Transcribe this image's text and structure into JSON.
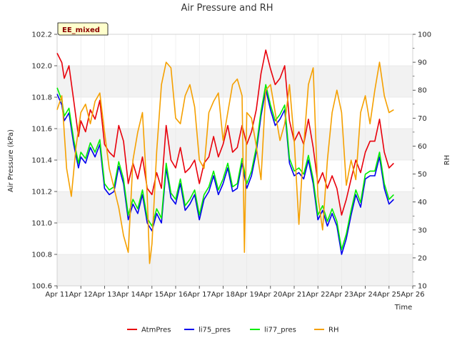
{
  "chart_data": {
    "type": "line",
    "title": "Air Pressure and RH",
    "badge": "EE_mixed",
    "xlabel": "Time",
    "ylabel": "Air Pressure (kPa)",
    "y2label": "RH",
    "xlim": [
      11,
      26
    ],
    "ylim": [
      100.6,
      102.2
    ],
    "y2lim": [
      10,
      100
    ],
    "x_ticks": [
      11,
      12,
      13,
      14,
      15,
      16,
      17,
      18,
      19,
      20,
      21,
      22,
      23,
      24,
      25,
      26
    ],
    "x_tick_labels": [
      "Apr 11",
      "Apr 12",
      "Apr 13",
      "Apr 14",
      "Apr 15",
      "Apr 16",
      "Apr 17",
      "Apr 18",
      "Apr 19",
      "Apr 20",
      "Apr 21",
      "Apr 22",
      "Apr 23",
      "Apr 24",
      "Apr 25",
      "Apr 26"
    ],
    "y_ticks": [
      100.6,
      100.8,
      101.0,
      101.2,
      101.4,
      101.6,
      101.8,
      102.0,
      102.2
    ],
    "y_tick_labels": [
      "100.6",
      "100.8",
      "101.0",
      "101.2",
      "101.4",
      "101.6",
      "101.8",
      "102.0",
      "102.2"
    ],
    "y2_ticks": [
      10,
      20,
      30,
      40,
      50,
      60,
      70,
      80,
      90,
      100
    ],
    "y2_tick_labels": [
      "10",
      "20",
      "30",
      "40",
      "50",
      "60",
      "70",
      "80",
      "90",
      "100"
    ],
    "grid": true,
    "background_bands": true,
    "legend_position": "bottom-center",
    "series": [
      {
        "name": "AtmPres",
        "axis": "left",
        "color": "#e8000b",
        "x": [
          11.0,
          11.2,
          11.3,
          11.5,
          11.7,
          11.9,
          12.0,
          12.2,
          12.4,
          12.6,
          12.8,
          13.0,
          13.2,
          13.4,
          13.6,
          13.8,
          14.0,
          14.2,
          14.4,
          14.6,
          14.8,
          15.0,
          15.2,
          15.4,
          15.6,
          15.8,
          16.0,
          16.2,
          16.4,
          16.6,
          16.8,
          17.0,
          17.2,
          17.4,
          17.6,
          17.8,
          18.0,
          18.2,
          18.4,
          18.6,
          18.8,
          19.0,
          19.2,
          19.4,
          19.6,
          19.8,
          20.0,
          20.2,
          20.4,
          20.6,
          20.8,
          21.0,
          21.2,
          21.4,
          21.6,
          21.8,
          22.0,
          22.2,
          22.4,
          22.6,
          22.8,
          23.0,
          23.2,
          23.4,
          23.6,
          23.8,
          24.0,
          24.2,
          24.4,
          24.6,
          24.8,
          25.0,
          25.2
        ],
        "values": [
          102.08,
          102.02,
          101.92,
          102.0,
          101.78,
          101.55,
          101.65,
          101.58,
          101.72,
          101.66,
          101.78,
          101.5,
          101.45,
          101.42,
          101.62,
          101.52,
          101.25,
          101.38,
          101.28,
          101.42,
          101.22,
          101.18,
          101.32,
          101.22,
          101.62,
          101.4,
          101.35,
          101.48,
          101.32,
          101.35,
          101.4,
          101.25,
          101.38,
          101.42,
          101.55,
          101.42,
          101.5,
          101.62,
          101.45,
          101.48,
          101.62,
          101.5,
          101.58,
          101.72,
          101.95,
          102.1,
          101.98,
          101.88,
          101.92,
          102.0,
          101.65,
          101.52,
          101.58,
          101.5,
          101.66,
          101.48,
          101.25,
          101.32,
          101.22,
          101.3,
          101.22,
          101.05,
          101.15,
          101.28,
          101.4,
          101.32,
          101.45,
          101.52,
          101.52,
          101.66,
          101.45,
          101.35,
          101.38
        ]
      },
      {
        "name": "li75_pres",
        "axis": "left",
        "color": "#0000ee",
        "x": [
          11.0,
          11.2,
          11.3,
          11.5,
          11.7,
          11.9,
          12.0,
          12.2,
          12.4,
          12.6,
          12.8,
          13.0,
          13.2,
          13.4,
          13.6,
          13.8,
          14.0,
          14.2,
          14.4,
          14.6,
          14.8,
          15.0,
          15.2,
          15.4,
          15.6,
          15.8,
          16.0,
          16.2,
          16.4,
          16.6,
          16.8,
          17.0,
          17.2,
          17.4,
          17.6,
          17.8,
          18.0,
          18.2,
          18.4,
          18.6,
          18.8,
          19.0,
          19.2,
          19.4,
          19.6,
          19.8,
          20.0,
          20.2,
          20.4,
          20.6,
          20.8,
          21.0,
          21.2,
          21.4,
          21.6,
          21.8,
          22.0,
          22.2,
          22.4,
          22.6,
          22.8,
          23.0,
          23.2,
          23.4,
          23.6,
          23.8,
          24.0,
          24.2,
          24.4,
          24.6,
          24.8,
          25.0,
          25.2
        ],
        "values": [
          101.82,
          101.75,
          101.65,
          101.7,
          101.5,
          101.35,
          101.42,
          101.38,
          101.48,
          101.42,
          101.5,
          101.22,
          101.18,
          101.2,
          101.36,
          101.25,
          101.02,
          101.12,
          101.06,
          101.18,
          101.0,
          100.95,
          101.06,
          101.0,
          101.35,
          101.16,
          101.12,
          101.25,
          101.08,
          101.12,
          101.18,
          101.02,
          101.15,
          101.2,
          101.3,
          101.18,
          101.25,
          101.35,
          101.2,
          101.22,
          101.38,
          101.22,
          101.3,
          101.45,
          101.68,
          101.85,
          101.72,
          101.62,
          101.66,
          101.72,
          101.38,
          101.3,
          101.32,
          101.28,
          101.4,
          101.25,
          101.02,
          101.08,
          100.98,
          101.06,
          100.98,
          100.8,
          100.9,
          101.05,
          101.18,
          101.1,
          101.28,
          101.3,
          101.3,
          101.42,
          101.22,
          101.12,
          101.15
        ]
      },
      {
        "name": "li77_pres",
        "axis": "left",
        "color": "#00ee00",
        "x": [
          11.0,
          11.2,
          11.3,
          11.5,
          11.7,
          11.9,
          12.0,
          12.2,
          12.4,
          12.6,
          12.8,
          13.0,
          13.2,
          13.4,
          13.6,
          13.8,
          14.0,
          14.2,
          14.4,
          14.6,
          14.8,
          15.0,
          15.2,
          15.4,
          15.6,
          15.8,
          16.0,
          16.2,
          16.4,
          16.6,
          16.8,
          17.0,
          17.2,
          17.4,
          17.6,
          17.8,
          18.0,
          18.2,
          18.4,
          18.6,
          18.8,
          19.0,
          19.2,
          19.4,
          19.6,
          19.8,
          20.0,
          20.2,
          20.4,
          20.6,
          20.8,
          21.0,
          21.2,
          21.4,
          21.6,
          21.8,
          22.0,
          22.2,
          22.4,
          22.6,
          22.8,
          23.0,
          23.2,
          23.4,
          23.6,
          23.8,
          24.0,
          24.2,
          24.4,
          24.6,
          24.8,
          25.0,
          25.2
        ],
        "values": [
          101.86,
          101.78,
          101.68,
          101.73,
          101.53,
          101.38,
          101.45,
          101.41,
          101.51,
          101.45,
          101.53,
          101.25,
          101.21,
          101.23,
          101.39,
          101.28,
          101.05,
          101.15,
          101.09,
          101.21,
          101.03,
          100.98,
          101.09,
          101.03,
          101.38,
          101.19,
          101.15,
          101.28,
          101.11,
          101.15,
          101.21,
          101.05,
          101.18,
          101.23,
          101.33,
          101.21,
          101.28,
          101.38,
          101.23,
          101.25,
          101.41,
          101.25,
          101.33,
          101.48,
          101.71,
          101.88,
          101.75,
          101.65,
          101.69,
          101.75,
          101.41,
          101.33,
          101.35,
          101.31,
          101.43,
          101.28,
          101.05,
          101.11,
          101.01,
          101.09,
          101.01,
          100.83,
          100.93,
          101.08,
          101.21,
          101.13,
          101.31,
          101.33,
          101.33,
          101.45,
          101.25,
          101.15,
          101.18
        ]
      },
      {
        "name": "RH",
        "axis": "right",
        "color": "#f5a000",
        "x": [
          11.0,
          11.2,
          11.4,
          11.6,
          11.8,
          12.0,
          12.2,
          12.4,
          12.6,
          12.8,
          13.0,
          13.2,
          13.4,
          13.6,
          13.8,
          14.0,
          14.2,
          14.4,
          14.6,
          14.8,
          14.9,
          15.0,
          15.2,
          15.4,
          15.6,
          15.8,
          16.0,
          16.2,
          16.4,
          16.6,
          16.8,
          17.0,
          17.2,
          17.4,
          17.6,
          17.8,
          18.0,
          18.2,
          18.4,
          18.6,
          18.8,
          18.9,
          19.0,
          19.2,
          19.4,
          19.6,
          19.8,
          20.0,
          20.2,
          20.4,
          20.6,
          20.8,
          21.0,
          21.2,
          21.4,
          21.6,
          21.8,
          22.0,
          22.2,
          22.4,
          22.6,
          22.8,
          23.0,
          23.2,
          23.4,
          23.6,
          23.8,
          24.0,
          24.2,
          24.4,
          24.6,
          24.8,
          25.0,
          25.2
        ],
        "values": [
          73,
          78,
          52,
          42,
          60,
          72,
          75,
          68,
          76,
          79,
          65,
          52,
          45,
          38,
          28,
          22,
          55,
          65,
          72,
          42,
          18,
          25,
          58,
          82,
          90,
          88,
          70,
          68,
          78,
          82,
          74,
          55,
          52,
          72,
          76,
          79,
          62,
          72,
          82,
          84,
          78,
          22,
          72,
          70,
          60,
          48,
          80,
          82,
          72,
          62,
          68,
          82,
          62,
          32,
          60,
          82,
          88,
          42,
          30,
          55,
          72,
          80,
          72,
          46,
          55,
          48,
          72,
          78,
          68,
          80,
          90,
          78,
          72,
          73
        ]
      }
    ]
  }
}
